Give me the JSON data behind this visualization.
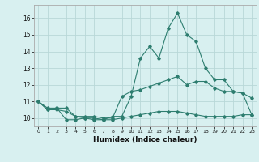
{
  "title": "",
  "xlabel": "Humidex (Indice chaleur)",
  "x": [
    0,
    1,
    2,
    3,
    4,
    5,
    6,
    7,
    8,
    9,
    10,
    11,
    12,
    13,
    14,
    15,
    16,
    17,
    18,
    19,
    20,
    21,
    22,
    23
  ],
  "main_line": [
    11.0,
    10.5,
    10.6,
    9.9,
    9.9,
    10.0,
    9.9,
    9.9,
    10.1,
    10.1,
    11.3,
    13.6,
    14.3,
    13.6,
    15.4,
    16.3,
    15.0,
    14.6,
    13.0,
    12.3,
    12.3,
    11.6,
    11.5,
    11.2
  ],
  "line_upper": [
    11.0,
    10.6,
    10.6,
    10.6,
    10.1,
    10.1,
    10.1,
    10.0,
    10.0,
    11.3,
    11.6,
    11.7,
    11.9,
    12.1,
    12.3,
    12.5,
    12.0,
    12.2,
    12.2,
    11.8,
    11.6,
    11.6,
    11.5,
    10.2
  ],
  "line_lower": [
    11.0,
    10.5,
    10.5,
    10.4,
    10.1,
    10.0,
    10.0,
    9.9,
    9.9,
    10.0,
    10.1,
    10.2,
    10.3,
    10.4,
    10.4,
    10.4,
    10.3,
    10.2,
    10.1,
    10.1,
    10.1,
    10.1,
    10.2,
    10.2
  ],
  "line_color": "#2d7d6f",
  "bg_color": "#d8f0f0",
  "grid_color": "#b8d8d8",
  "ylim": [
    9.5,
    16.8
  ],
  "yticks": [
    10,
    11,
    12,
    13,
    14,
    15,
    16
  ],
  "xlim": [
    -0.5,
    23.5
  ]
}
